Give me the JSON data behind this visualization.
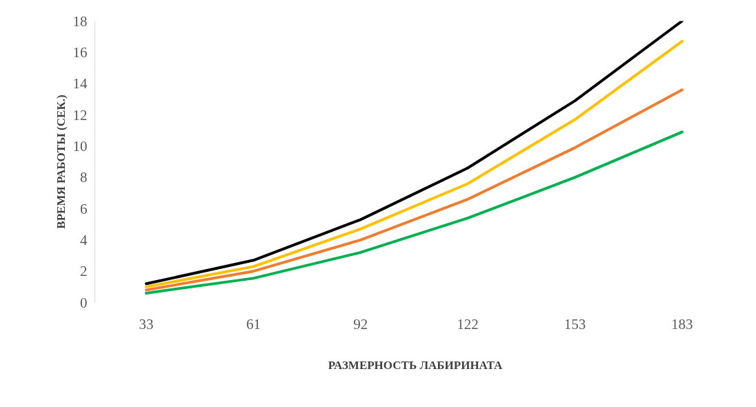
{
  "chart_data": {
    "type": "line",
    "xlabel": "РАЗМЕРНОСТЬ ЛАБИРИНАТА",
    "ylabel": "ВРЕМЯ РАБОТЫ (СЕК.)",
    "categories": [
      "33",
      "61",
      "92",
      "122",
      "153",
      "183"
    ],
    "ylim": [
      0,
      18
    ],
    "yticks": [
      0,
      2,
      4,
      6,
      8,
      10,
      12,
      14,
      16,
      18
    ],
    "grid": false,
    "marker": "none",
    "line_style": "solid",
    "series": [
      {
        "color": "#000000",
        "values": [
          1.2,
          2.7,
          5.3,
          8.6,
          12.9,
          18.0
        ]
      },
      {
        "color": "#ffc000",
        "values": [
          1.0,
          2.3,
          4.7,
          7.6,
          11.7,
          16.7
        ]
      },
      {
        "color": "#ed7d31",
        "values": [
          0.8,
          2.0,
          4.0,
          6.6,
          9.9,
          13.6
        ]
      },
      {
        "color": "#00b050",
        "values": [
          0.6,
          1.55,
          3.2,
          5.4,
          8.0,
          10.9
        ]
      }
    ]
  }
}
